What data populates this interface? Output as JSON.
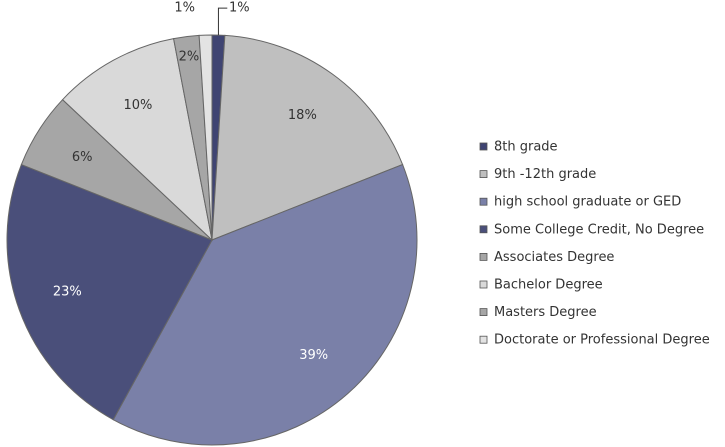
{
  "chart_data": {
    "type": "pie",
    "categories": [
      "8th grade",
      "9th -12th grade",
      "high school graduate or GED",
      "Some College Credit, No Degree",
      "Associates Degree",
      "Bachelor Degree",
      "Masters Degree",
      "Doctorate or Professional Degree"
    ],
    "values": [
      1,
      18,
      39,
      23,
      6,
      10,
      2,
      1
    ],
    "value_labels": [
      "1%",
      "18%",
      "39%",
      "23%",
      "6%",
      "10%",
      "2%",
      "1%"
    ],
    "colors": [
      "#3f4472",
      "#bfbfbf",
      "#7a80a8",
      "#4a4f7a",
      "#a6a6a6",
      "#d9d9d9",
      "#a6a6a6",
      "#e3e3e3"
    ],
    "legend": "right"
  }
}
